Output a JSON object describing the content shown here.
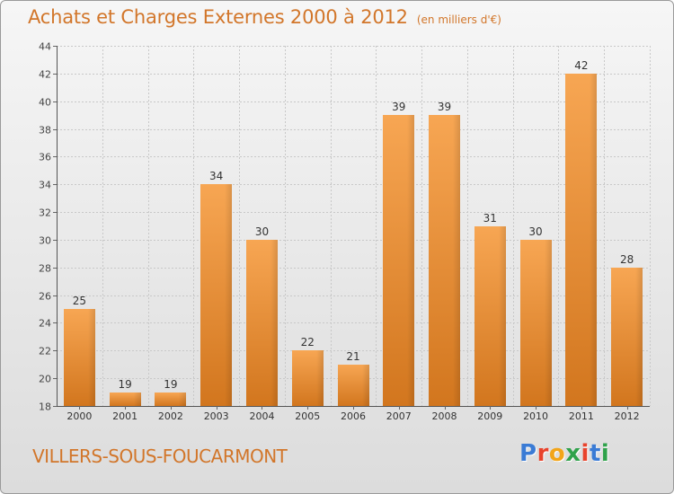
{
  "header": {
    "title": "Achats et Charges Externes 2000 à 2012",
    "unit": "(en milliers d'€)"
  },
  "footer": {
    "commune": "VILLERS-SOUS-FOUCARMONT",
    "logo_text": "Proxiti"
  },
  "colors": {
    "bar_top": "#f7a653",
    "bar_bottom": "#d2761e",
    "title": "#d2762a",
    "logo": [
      "#3a7bd5",
      "#e8432c",
      "#f2a51a",
      "#2fa24b",
      "#e8432c",
      "#3a7bd5",
      "#2fa24b"
    ]
  },
  "chart_data": {
    "type": "bar",
    "categories": [
      "2000",
      "2001",
      "2002",
      "2003",
      "2004",
      "2005",
      "2006",
      "2007",
      "2008",
      "2009",
      "2010",
      "2011",
      "2012"
    ],
    "values": [
      25,
      19,
      19,
      34,
      30,
      22,
      21,
      39,
      39,
      31,
      30,
      42,
      28
    ],
    "title": "Achats et Charges Externes 2000 à 2012",
    "subtitle": "(en milliers d'€)",
    "xlabel": "",
    "ylabel": "",
    "ylim": [
      18,
      44
    ],
    "yticks": [
      18,
      20,
      22,
      24,
      26,
      28,
      30,
      32,
      34,
      36,
      38,
      40,
      42,
      44
    ],
    "grid": true,
    "data_labels": true,
    "legend": "none"
  }
}
